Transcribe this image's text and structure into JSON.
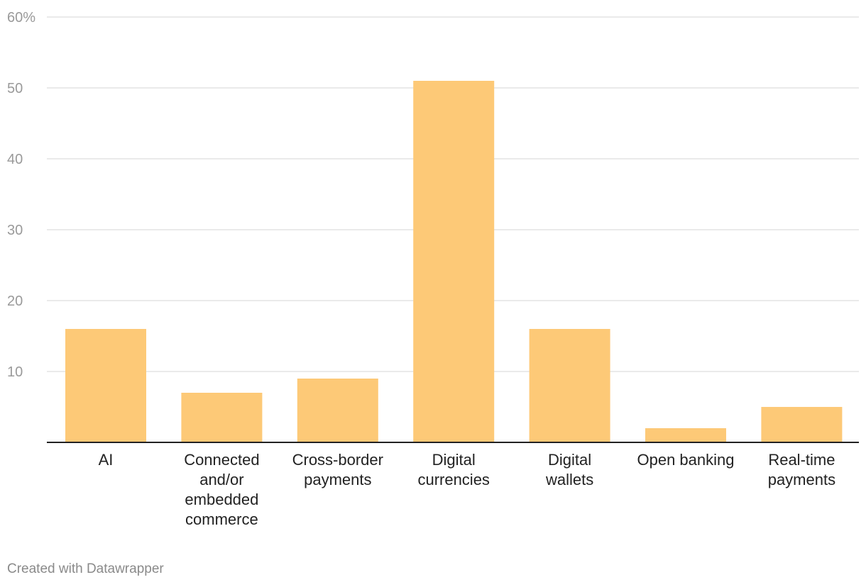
{
  "chart_data": {
    "type": "bar",
    "title": "",
    "xlabel": "",
    "ylabel": "",
    "categories": [
      [
        "AI"
      ],
      [
        "Connected",
        "and/or",
        "embedded",
        "commerce"
      ],
      [
        "Cross-border",
        "payments"
      ],
      [
        "Digital",
        "currencies"
      ],
      [
        "Digital",
        "wallets"
      ],
      [
        "Open banking"
      ],
      [
        "Real-time",
        "payments"
      ]
    ],
    "values": [
      16,
      7,
      9,
      51,
      16,
      2,
      5
    ],
    "ylim": [
      0,
      60
    ],
    "yticks": [
      10,
      20,
      30,
      40,
      50,
      60
    ],
    "ytick_labels": [
      "10",
      "20",
      "30",
      "40",
      "50",
      "60%"
    ],
    "grid": true,
    "bar_color": "#fdc977"
  },
  "footer": {
    "credit": "Created with Datawrapper"
  }
}
